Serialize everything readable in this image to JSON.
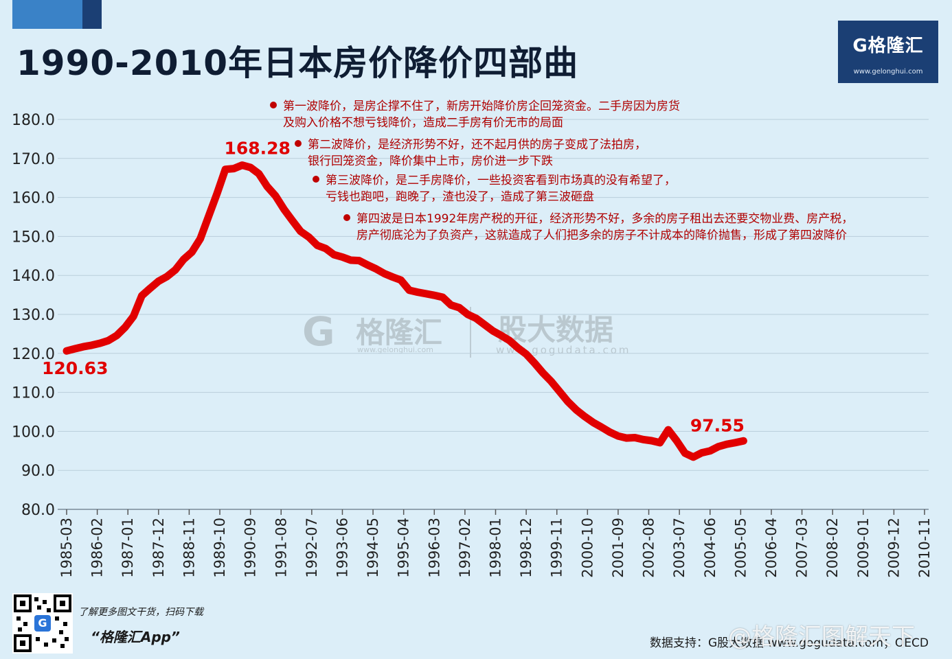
{
  "header": {
    "title": "1990-2010年日本房价降价四部曲",
    "logo_text": "G格隆汇",
    "logo_url": "www.gelonghui.com"
  },
  "watermark": {
    "name": "格隆汇",
    "url1": "www.gelonghui.com",
    "brand": "股大数据",
    "url2": "www.gogudata.com"
  },
  "footer": {
    "promo": "了解更多图文干货，扫码下载",
    "app": "“格隆汇App”",
    "source": "数据支持：G股大数据 www.gogudata.com；OECD",
    "weibo": "@格隆汇图解天下"
  },
  "chart_data": {
    "type": "line",
    "title": "1990-2010年日本房价降价四部曲",
    "xlabel": "",
    "ylabel": "",
    "ylim": [
      80,
      180
    ],
    "y_ticks": [
      "180.0",
      "170.0",
      "160.0",
      "150.0",
      "140.0",
      "130.0",
      "120.0",
      "110.0",
      "100.0",
      "90.0",
      "80.0"
    ],
    "x_ticks": [
      "1985-03",
      "1986-02",
      "1987-01",
      "1987-12",
      "1988-11",
      "1989-10",
      "1990-09",
      "1991-08",
      "1992-07",
      "1993-06",
      "1994-05",
      "1995-04",
      "1996-03",
      "1997-02",
      "1998-01",
      "1998-12",
      "1999-11",
      "2000-10",
      "2001-09",
      "2002-08",
      "2003-07",
      "2004-06",
      "2005-05",
      "2006-04",
      "2007-03",
      "2008-02",
      "2009-01",
      "2009-12",
      "2010-11"
    ],
    "grid": true,
    "series": [
      {
        "color": "#e10000",
        "points": [
          [
            "1985-03",
            120.63
          ],
          [
            "1985-06",
            121.2
          ],
          [
            "1985-09",
            121.7
          ],
          [
            "1985-12",
            122.1
          ],
          [
            "1986-03",
            122.6
          ],
          [
            "1986-06",
            123.3
          ],
          [
            "1986-09",
            124.6
          ],
          [
            "1986-12",
            126.7
          ],
          [
            "1987-03",
            129.5
          ],
          [
            "1987-06",
            134.8
          ],
          [
            "1987-09",
            136.7
          ],
          [
            "1987-12",
            138.5
          ],
          [
            "1988-03",
            139.7
          ],
          [
            "1988-06",
            141.4
          ],
          [
            "1988-09",
            144.1
          ],
          [
            "1988-12",
            146.0
          ],
          [
            "1989-03",
            149.4
          ],
          [
            "1989-06",
            155.2
          ],
          [
            "1989-09",
            161.0
          ],
          [
            "1989-12",
            167.2
          ],
          [
            "1990-03",
            167.4
          ],
          [
            "1990-06",
            168.28
          ],
          [
            "1990-09",
            167.7
          ],
          [
            "1990-12",
            166.1
          ],
          [
            "1991-03",
            162.8
          ],
          [
            "1991-06",
            160.4
          ],
          [
            "1991-09",
            157.0
          ],
          [
            "1991-12",
            154.1
          ],
          [
            "1992-03",
            151.3
          ],
          [
            "1992-06",
            149.8
          ],
          [
            "1992-09",
            147.7
          ],
          [
            "1992-12",
            146.9
          ],
          [
            "1993-03",
            145.3
          ],
          [
            "1993-06",
            144.7
          ],
          [
            "1993-09",
            143.9
          ],
          [
            "1993-12",
            143.8
          ],
          [
            "1994-03",
            142.7
          ],
          [
            "1994-06",
            141.7
          ],
          [
            "1994-09",
            140.5
          ],
          [
            "1994-12",
            139.6
          ],
          [
            "1995-03",
            138.8
          ],
          [
            "1995-06",
            136.2
          ],
          [
            "1995-09",
            135.7
          ],
          [
            "1995-12",
            135.3
          ],
          [
            "1996-03",
            134.9
          ],
          [
            "1996-06",
            134.4
          ],
          [
            "1996-09",
            132.4
          ],
          [
            "1996-12",
            131.7
          ],
          [
            "1997-03",
            130.0
          ],
          [
            "1997-06",
            129.0
          ],
          [
            "1997-09",
            127.4
          ],
          [
            "1997-12",
            125.8
          ],
          [
            "1998-03",
            124.6
          ],
          [
            "1998-06",
            123.3
          ],
          [
            "1998-09",
            121.4
          ],
          [
            "1998-12",
            119.8
          ],
          [
            "1999-03",
            117.5
          ],
          [
            "1999-06",
            115.0
          ],
          [
            "1999-09",
            112.8
          ],
          [
            "1999-12",
            110.2
          ],
          [
            "2000-03",
            107.6
          ],
          [
            "2000-06",
            105.5
          ],
          [
            "2000-09",
            103.8
          ],
          [
            "2000-12",
            102.3
          ],
          [
            "2001-03",
            101.1
          ],
          [
            "2001-06",
            99.8
          ],
          [
            "2001-09",
            98.8
          ],
          [
            "2001-12",
            98.3
          ],
          [
            "2002-03",
            98.4
          ],
          [
            "2002-06",
            97.9
          ],
          [
            "2002-09",
            97.6
          ],
          [
            "2002-12",
            97.1
          ],
          [
            "2003-03",
            100.4
          ],
          [
            "2003-06",
            97.6
          ],
          [
            "2003-09",
            94.4
          ],
          [
            "2003-12",
            93.4
          ],
          [
            "2004-03",
            94.5
          ],
          [
            "2004-06",
            95.0
          ],
          [
            "2004-09",
            96.1
          ],
          [
            "2004-12",
            96.7
          ],
          [
            "2005-03",
            97.1
          ],
          [
            "2005-06",
            97.55
          ]
        ]
      }
    ],
    "data_labels": [
      {
        "x": "1985-03",
        "y": 120.63,
        "text": "120.63"
      },
      {
        "x": "1990-06",
        "y": 168.28,
        "text": "168.28"
      },
      {
        "x": "2005-06",
        "y": 97.55,
        "text": "97.55"
      }
    ],
    "annotations": [
      {
        "lines": [
          "第一波降价，是房企撑不住了，新房开始降价房企回笼资金。二手房因为房货",
          "及购入价格不想亏钱降价，造成二手房有价无市的局面"
        ]
      },
      {
        "lines": [
          "第二波降价，是经济形势不好，还不起月供的房子变成了法拍房，",
          "银行回笼资金，降价集中上市，房价进一步下跌"
        ]
      },
      {
        "lines": [
          "第三波降价，是二手房降价，一些投资客看到市场真的没有希望了，",
          "亏钱也跑吧，跑晚了，渣也没了，造成了第三波砸盘"
        ]
      },
      {
        "lines": [
          "第四波是日本1992年房产税的开征，经济形势不好，多余的房子租出去还要交物业费、房产税，",
          "房产彻底沦为了负资产，这就造成了人们把多余的房子不计成本的降价抛售，形成了第四波降价"
        ]
      }
    ]
  }
}
